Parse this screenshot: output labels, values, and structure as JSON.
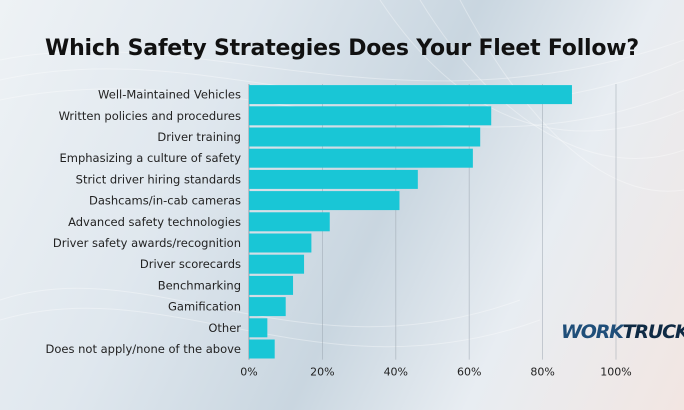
{
  "title": "Which Safety Strategies Does Your Fleet Follow?",
  "logo": {
    "part1": "WORK",
    "part2": "TRUCK"
  },
  "colors": {
    "bar": "#19c6d6",
    "grid": "#9aa4ad",
    "text": "#222222"
  },
  "chart_data": {
    "type": "bar",
    "orientation": "horizontal",
    "title": "Which Safety Strategies Does Your Fleet Follow?",
    "categories": [
      "Well-Maintained Vehicles",
      "Written policies and procedures",
      "Driver training",
      "Emphasizing a culture of safety",
      "Strict driver hiring standards",
      "Dashcams/in-cab cameras",
      "Advanced safety technologies",
      "Driver safety awards/recognition",
      "Driver scorecards",
      "Benchmarking",
      "Gamification",
      "Other",
      "Does not apply/none of the above"
    ],
    "values": [
      88,
      66,
      63,
      61,
      46,
      41,
      22,
      17,
      15,
      12,
      10,
      5,
      7
    ],
    "xlim": [
      0,
      100
    ],
    "xticks": [
      "0%",
      "20%",
      "40%",
      "60%",
      "80%",
      "100%"
    ],
    "xtick_values": [
      0,
      20,
      40,
      60,
      80,
      100
    ],
    "grid": true
  }
}
